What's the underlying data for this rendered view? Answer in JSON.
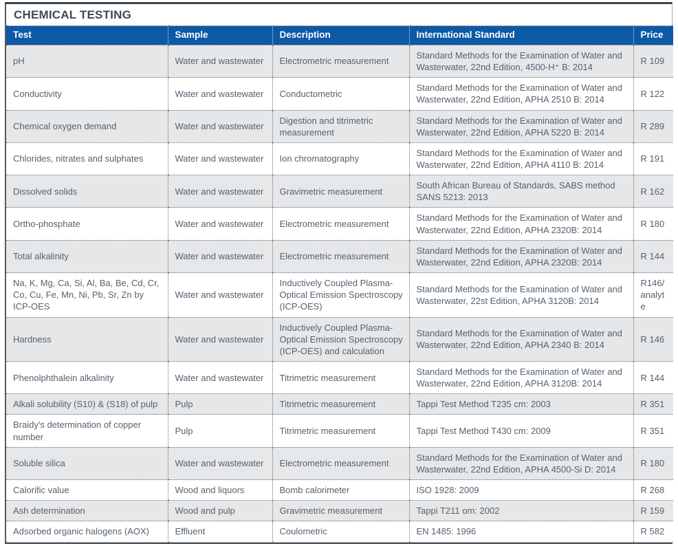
{
  "title": "CHEMICAL TESTING",
  "colors": {
    "header_bg": "#0c59a6",
    "header_text": "#ffffff",
    "row_alt_bg": "#e6e7e8",
    "body_text": "#546270",
    "title_text": "#3d4b55",
    "dotted_border": "#6a6b6d"
  },
  "table": {
    "columns": [
      "Test",
      "Sample",
      "Description",
      "International Standard",
      "Price"
    ],
    "rows": [
      {
        "test": "pH",
        "sample": "Water and wastewater",
        "description": "Electrometric measurement",
        "standard": "Standard Methods  for the Examination of Water and Wasterwater, 22nd Edition, 4500-H⁺ B: 2014",
        "price": "R 109"
      },
      {
        "test": "Conductivity",
        "sample": "Water and wastewater",
        "description": "Conductometric",
        "standard": "Standard Methods  for the Examination of Water and Wasterwater, 22nd Edition, APHA 2510 B: 2014",
        "price": "R 122"
      },
      {
        "test": "Chemical oxygen demand",
        "sample": "Water and wastewater",
        "description": "Digestion and titrimetric measurement",
        "standard": "Standard Methods  for the Examination of Water and Wasterwater, 22nd Edition, APHA 5220 B: 2014",
        "price": "R 289"
      },
      {
        "test": "Chlorides, nitrates and sulphates",
        "sample": "Water and wastewater",
        "description": "Ion chromatography",
        "standard": "Standard Methods  for the Examination of Water and Wasterwater, 22nd Edition, APHA 4110 B: 2014",
        "price": "R 191"
      },
      {
        "test": "Dissolved solids",
        "sample": "Water and wastewater",
        "description": "Gravimetric measurement",
        "standard": "South African Bureau of Standards, SABS method SANS 5213: 2013",
        "price": "R 162"
      },
      {
        "test": "Ortho-phosphate",
        "sample": "Water and wastewater",
        "description": "Electrometric measurement",
        "standard": "Standard Methods  for the Examination of Water and Wasterwater, 22nd Edition, APHA 2320B: 2014",
        "price": "R 180"
      },
      {
        "test": "Total alkalinity",
        "sample": "Water and wastewater",
        "description": "Electrometric measurement",
        "standard": "Standard Methods  for the Examination of Water and Wasterwater, 22nd Edition, APHA 2320B: 2014",
        "price": "R 144"
      },
      {
        "test": "Na, K, Mg, Ca, Si, Al, Ba, Be, Cd, Cr, Co, Cu, Fe, Mn, Ni, Pb, Sr, Zn by ICP-OES",
        "sample": "Water and wastewater",
        "description": "Inductively Coupled Plasma-Optical Emission Spectroscopy (ICP-OES)",
        "standard": "Standard Methods  for the Examination of Water and Wasterwater, 22st Edition, APHA 3120B: 2014",
        "price": "R146/ analyte"
      },
      {
        "test": "Hardness",
        "sample": "Water and wastewater",
        "description": "Inductively Coupled Plasma-Optical Emission Spectroscopy (ICP-OES) and calculation",
        "standard": "Standard Methods  for the Examination of Water and Wasterwater, 22nd Edition, APHA 2340 B: 2014",
        "price": "R 146"
      },
      {
        "test": "Phenolphthalein alkalinity",
        "sample": "Water and wastewater",
        "description": "Titrimetric measurement",
        "standard": "Standard Methods  for the Examination of Water and Wasterwater, 22nd Edition, APHA 3120B: 2014",
        "price": "R 144"
      },
      {
        "test": "Alkali solubility (S10) & (S18) of pulp",
        "sample": "Pulp",
        "description": "Titrimetric measurement",
        "standard": "Tappi Test Method T235 cm: 2003",
        "price": "R 351"
      },
      {
        "test": "Braidy's determination of copper number",
        "sample": "Pulp",
        "description": "Titrimetric measurement",
        "standard": "Tappi Test Method T430 cm: 2009",
        "price": "R 351"
      },
      {
        "test": "Soluble silica",
        "sample": "Water and wastewater",
        "description": "Electrometric measurement",
        "standard": "Standard Methods  for the Examination of Water and Wasterwater, 22nd Edition, APHA 4500-Si D: 2014",
        "price": "R 180"
      },
      {
        "test": "Calorific value",
        "sample": "Wood and liquors",
        "description": "Bomb calorimeter",
        "standard": "ISO 1928: 2009",
        "price": "R 268"
      },
      {
        "test": "Ash determination",
        "sample": "Wood and pulp",
        "description": "Gravimetric measurement",
        "standard": "Tappi T211 om: 2002",
        "price": "R 159"
      },
      {
        "test": "Adsorbed organic halogens (AOX)",
        "sample": "Effluent",
        "description": "Coulometric",
        "standard": "EN 1485: 1996",
        "price": "R 582"
      }
    ]
  }
}
